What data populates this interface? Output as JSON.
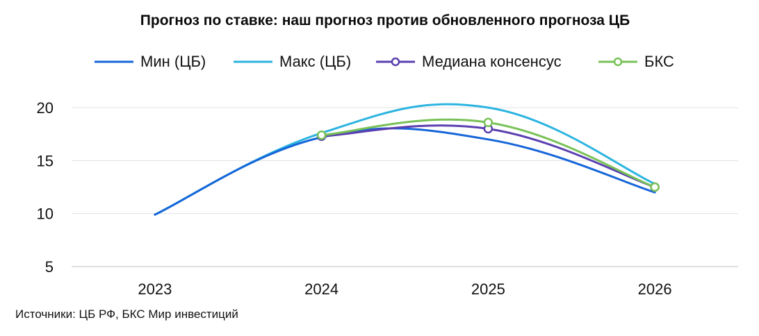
{
  "chart_data": {
    "type": "line",
    "title": "Прогноз по ставке: наш прогноз против обновленного прогноза ЦБ",
    "categories": [
      "2023",
      "2024",
      "2025",
      "2026"
    ],
    "xlabel": "",
    "ylabel": "",
    "ylim": [
      5,
      20
    ],
    "yticks": [
      "5",
      "10",
      "15",
      "20"
    ],
    "grid": true,
    "legend_position": "top",
    "series": [
      {
        "name": "Мин (ЦБ)",
        "color": "#1565d8",
        "marker": false,
        "values": [
          9.9,
          17.2,
          17.0,
          12.0
        ]
      },
      {
        "name": "Макс (ЦБ)",
        "color": "#2cb4e0",
        "marker": false,
        "values": [
          9.9,
          17.6,
          20.0,
          12.8
        ]
      },
      {
        "name": "Медиана консенсус",
        "color": "#5a3fb0",
        "marker": true,
        "values": [
          null,
          17.3,
          18.0,
          12.5
        ]
      },
      {
        "name": "БКС",
        "color": "#78c157",
        "marker": true,
        "values": [
          null,
          17.4,
          18.6,
          12.5
        ]
      }
    ]
  },
  "source": "Источники: ЦБ РФ, БКС Мир инвестиций"
}
